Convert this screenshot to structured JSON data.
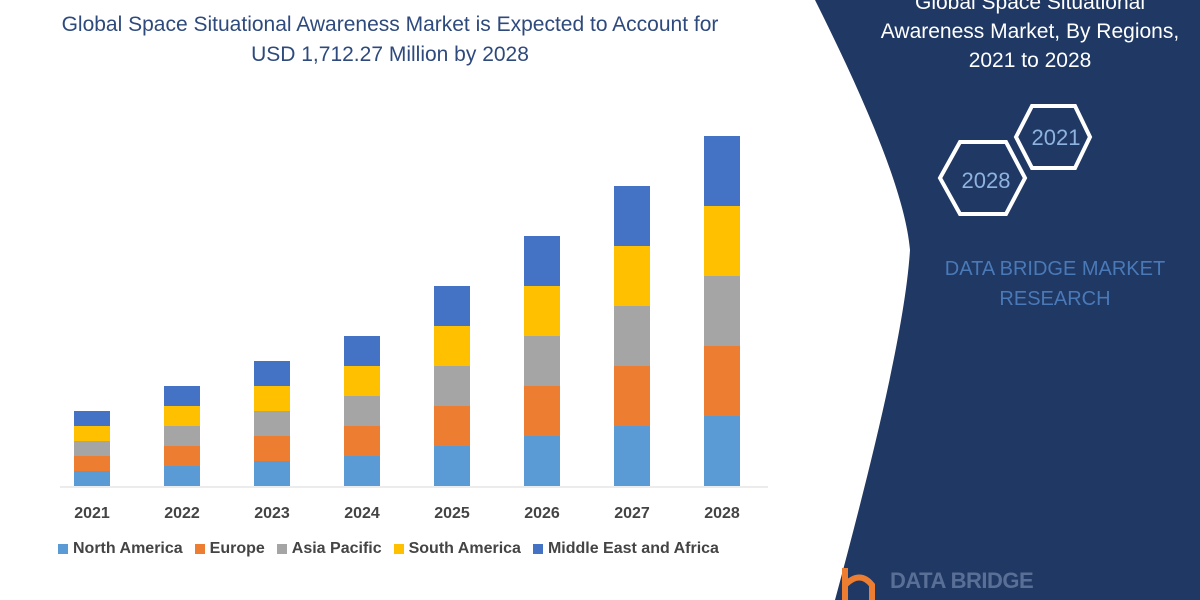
{
  "chart_data": {
    "type": "bar",
    "stacked": true,
    "title": "Global Space Situational Awareness Market is Expected to Account for USD 1,712.27 Million by 2028",
    "categories": [
      "2021",
      "2022",
      "2023",
      "2024",
      "2025",
      "2026",
      "2027",
      "2028"
    ],
    "series": [
      {
        "name": "North America",
        "color": "#5b9bd5",
        "values": [
          15,
          20,
          25,
          30,
          40,
          50,
          60,
          70
        ]
      },
      {
        "name": "Europe",
        "color": "#ed7d31",
        "values": [
          15,
          20,
          25,
          30,
          40,
          50,
          60,
          70
        ]
      },
      {
        "name": "Asia Pacific",
        "color": "#a5a5a5",
        "values": [
          15,
          20,
          25,
          30,
          40,
          50,
          60,
          70
        ]
      },
      {
        "name": "South America",
        "color": "#ffc000",
        "values": [
          15,
          20,
          25,
          30,
          40,
          50,
          60,
          70
        ]
      },
      {
        "name": "Middle East and Africa",
        "color": "#4472c4",
        "values": [
          15,
          20,
          25,
          30,
          40,
          50,
          60,
          70
        ]
      }
    ],
    "ylim": [
      0,
      360
    ],
    "grid": false,
    "legend_position": "bottom",
    "xlabel": "",
    "ylabel": ""
  },
  "panel": {
    "title_lines": [
      "Global Space Situational",
      "Awareness Market, By Regions,",
      "2021 to 2028"
    ],
    "hex_start": "2021",
    "hex_end": "2028",
    "brand_lines": [
      "DATA BRIDGE MARKET",
      "RESEARCH"
    ],
    "logo_text": "DATA BRIDGE",
    "background_color": "#1f3864"
  }
}
